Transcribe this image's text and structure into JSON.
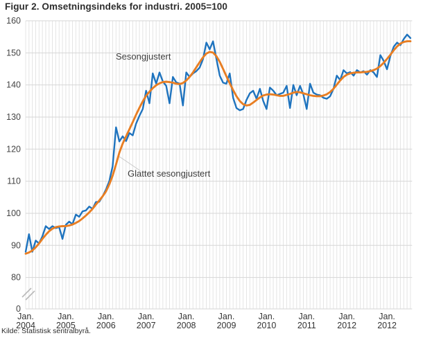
{
  "page": {
    "title": "Figur 2. Omsetningsindeks for industri. 2005=100",
    "source": "Kilde: Statistisk sentralbyrå."
  },
  "chart_data": {
    "type": "line",
    "title": "Figur 2. Omsetningsindeks for industri. 2005=100",
    "frequency": "monthly",
    "period_start": "Jan 2004",
    "x_tick_labels": [
      {
        "line1": "Jan.",
        "line2": "2004"
      },
      {
        "line1": "Jan.",
        "line2": "2005"
      },
      {
        "line1": "Jan.",
        "line2": "2006"
      },
      {
        "line1": "Jan.",
        "line2": "2007"
      },
      {
        "line1": "Jan.",
        "line2": "2008"
      },
      {
        "line1": "Jan.",
        "line2": "2009"
      },
      {
        "line1": "Jan.",
        "line2": "2010"
      },
      {
        "line1": "Jan.",
        "line2": "2011"
      },
      {
        "line1": "Jan.",
        "line2": "2012"
      },
      {
        "line1": "Jan.",
        "line2": "2012"
      }
    ],
    "y_ticks": [
      0,
      80,
      90,
      100,
      110,
      120,
      130,
      140,
      150,
      160
    ],
    "ylim_main": [
      80,
      160
    ],
    "y_axis_break": "axis broken between 0 and 80",
    "grid": "monthly vertical gridlines, horizontal every 10 units",
    "legend_position": "inline annotations with callout line",
    "series": [
      {
        "name": "Sesongjustert",
        "color": "#1e73be",
        "values": [
          88.0,
          93.5,
          88.0,
          91.5,
          90.6,
          92.8,
          96.0,
          95.1,
          96.0,
          95.4,
          95.7,
          92.0,
          96.4,
          97.4,
          96.6,
          99.6,
          98.9,
          100.6,
          100.9,
          102.1,
          101.4,
          103.5,
          103.6,
          105.3,
          107.4,
          110.0,
          114.6,
          126.8,
          122.4,
          124.0,
          122.5,
          125.0,
          124.3,
          127.9,
          130.4,
          132.5,
          138.2,
          134.3,
          143.6,
          140.4,
          143.9,
          141.1,
          139.7,
          134.3,
          142.5,
          140.8,
          140.4,
          133.6,
          143.9,
          142.5,
          143.6,
          144.3,
          145.4,
          148.0,
          153.2,
          151.1,
          153.6,
          148.2,
          142.9,
          140.7,
          140.4,
          143.6,
          136.0,
          132.8,
          132.1,
          132.5,
          135.3,
          137.4,
          138.2,
          135.7,
          138.8,
          135.0,
          132.5,
          139.2,
          138.2,
          136.8,
          137.2,
          137.6,
          139.7,
          132.8,
          140.0,
          136.8,
          139.7,
          137.0,
          132.5,
          140.4,
          137.6,
          137.0,
          136.8,
          136.0,
          135.7,
          136.5,
          138.8,
          142.9,
          141.5,
          144.6,
          143.6,
          144.0,
          142.9,
          144.6,
          143.9,
          144.3,
          143.2,
          144.6,
          143.9,
          142.5,
          149.3,
          147.5,
          144.9,
          149.0,
          151.9,
          153.2,
          152.4,
          154.3,
          155.7,
          154.6
        ]
      },
      {
        "name": "Glattet sesongjustert",
        "color": "#e87e23",
        "values": [
          87.4,
          87.8,
          88.4,
          89.4,
          90.6,
          92.0,
          93.3,
          94.4,
          95.2,
          95.7,
          95.9,
          96.0,
          96.0,
          96.2,
          96.5,
          97.0,
          97.6,
          98.4,
          99.3,
          100.3,
          101.4,
          102.7,
          104.0,
          105.3,
          106.8,
          109.0,
          111.7,
          115.2,
          118.9,
          121.7,
          124.0,
          126.2,
          128.4,
          130.7,
          132.9,
          134.9,
          136.6,
          137.9,
          139.0,
          139.9,
          140.5,
          140.9,
          141.0,
          140.9,
          140.7,
          140.4,
          140.3,
          140.6,
          141.4,
          142.5,
          143.9,
          145.5,
          147.1,
          148.6,
          149.8,
          150.3,
          150.1,
          149.0,
          147.2,
          145.0,
          142.7,
          140.5,
          138.4,
          136.5,
          135.0,
          134.0,
          133.6,
          133.8,
          134.5,
          135.3,
          136.1,
          136.7,
          137.0,
          137.1,
          137.0,
          136.8,
          136.6,
          136.6,
          136.9,
          137.2,
          137.6,
          137.8,
          137.7,
          137.4,
          137.1,
          136.8,
          136.6,
          136.5,
          136.5,
          136.7,
          137.1,
          137.8,
          138.8,
          140.1,
          141.4,
          142.5,
          143.2,
          143.6,
          143.8,
          143.9,
          143.9,
          144.0,
          144.1,
          144.3,
          144.6,
          145.1,
          145.9,
          146.9,
          148.1,
          149.4,
          150.8,
          152.0,
          152.9,
          153.4,
          153.6,
          153.6
        ]
      }
    ],
    "source": "Kilde: Statistisk sentralbyrå."
  }
}
